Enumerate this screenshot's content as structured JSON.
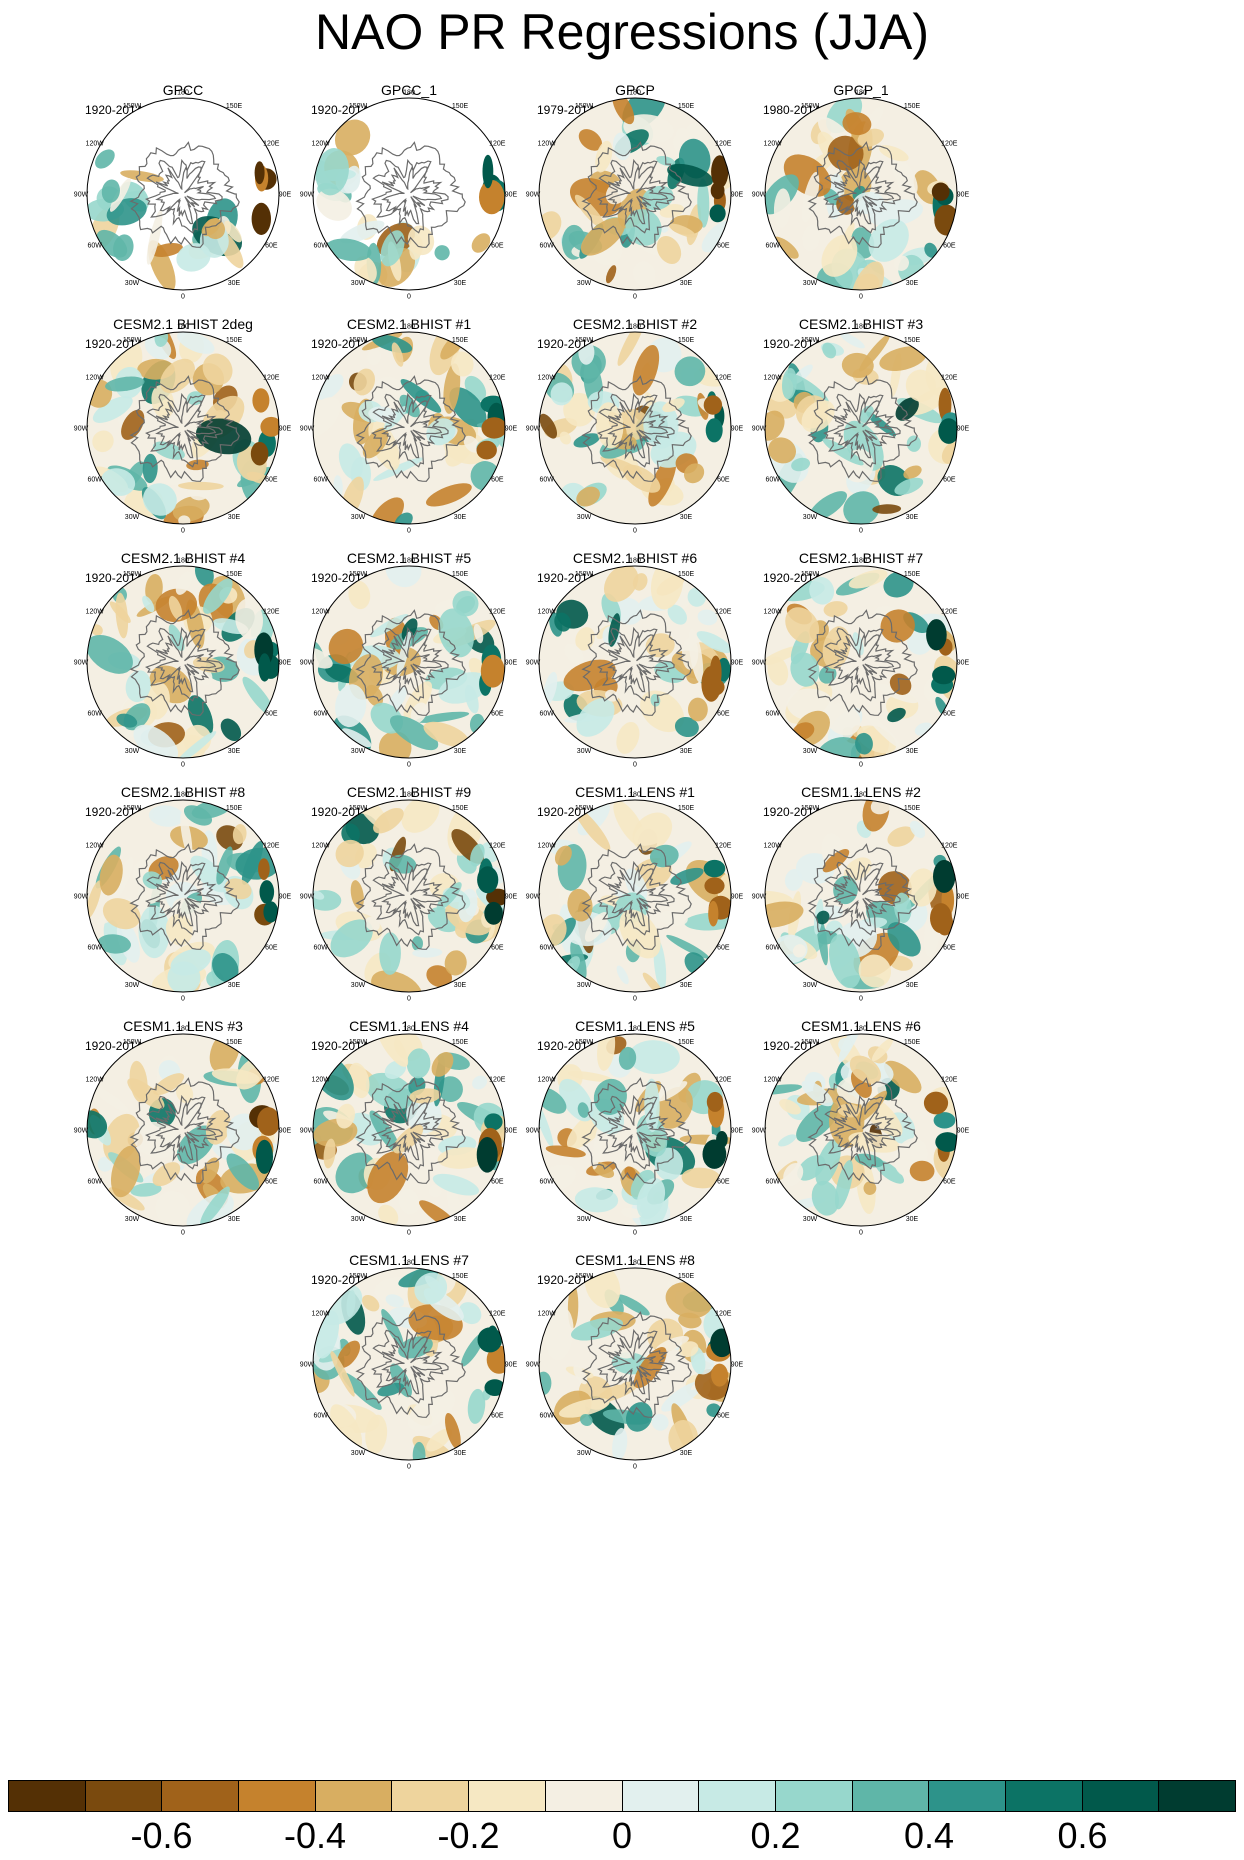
{
  "title": "NAO PR Regressions (JJA)",
  "panels": [
    {
      "name": "GPCC",
      "period": "1920-2014",
      "mask": true,
      "seed": 3
    },
    {
      "name": "GPCC_1",
      "period": "1920-2014",
      "mask": true,
      "seed": 5
    },
    {
      "name": "GPCP",
      "period": "1979-2014",
      "mask": false,
      "seed": 7
    },
    {
      "name": "GPCP_1",
      "period": "1980-2014",
      "mask": false,
      "seed": 9
    },
    {
      "name": "CESM2.1 BHIST 2deg",
      "period": "1920-2014",
      "mask": false,
      "seed": 11
    },
    {
      "name": "CESM2.1 BHIST #1",
      "period": "1920-2014",
      "mask": false,
      "seed": 13
    },
    {
      "name": "CESM2.1 BHIST #2",
      "period": "1920-2014",
      "mask": false,
      "seed": 17
    },
    {
      "name": "CESM2.1 BHIST #3",
      "period": "1920-2014",
      "mask": false,
      "seed": 19
    },
    {
      "name": "CESM2.1 BHIST #4",
      "period": "1920-2014",
      "mask": false,
      "seed": 23
    },
    {
      "name": "CESM2.1 BHIST #5",
      "period": "1920-2014",
      "mask": false,
      "seed": 29
    },
    {
      "name": "CESM2.1 BHIST #6",
      "period": "1920-2014",
      "mask": false,
      "seed": 31
    },
    {
      "name": "CESM2.1 BHIST #7",
      "period": "1920-2014",
      "mask": false,
      "seed": 37
    },
    {
      "name": "CESM2.1 BHIST #8",
      "period": "1920-2014",
      "mask": false,
      "seed": 41
    },
    {
      "name": "CESM2.1 BHIST #9",
      "period": "1920-2014",
      "mask": false,
      "seed": 43
    },
    {
      "name": "CESM1.1 LENS #1",
      "period": "1920-2014",
      "mask": false,
      "seed": 47
    },
    {
      "name": "CESM1.1 LENS #2",
      "period": "1920-2014",
      "mask": false,
      "seed": 53
    },
    {
      "name": "CESM1.1 LENS #3",
      "period": "1920-2014",
      "mask": false,
      "seed": 59
    },
    {
      "name": "CESM1.1 LENS #4",
      "period": "1920-2014",
      "mask": false,
      "seed": 61
    },
    {
      "name": "CESM1.1 LENS #5",
      "period": "1920-2014",
      "mask": false,
      "seed": 67
    },
    {
      "name": "CESM1.1 LENS #6",
      "period": "1920-2014",
      "mask": false,
      "seed": 71
    },
    {
      "name": "CESM1.1 LENS #7",
      "period": "1920-2014",
      "mask": false,
      "seed": 73
    },
    {
      "name": "CESM1.1 LENS #8",
      "period": "1920-2014",
      "mask": false,
      "seed": 79
    }
  ],
  "longitude_labels": [
    "180",
    "150E",
    "120E",
    "90E",
    "60E",
    "30E",
    "0",
    "30W",
    "60W",
    "90W",
    "120W",
    "150W"
  ],
  "colorbar": {
    "colors": [
      "#543005",
      "#7a4a0e",
      "#a0621a",
      "#c5822d",
      "#d8ae61",
      "#eed49d",
      "#f6e8c3",
      "#f4efe3",
      "#e2f0ee",
      "#c7eae5",
      "#97d7cc",
      "#5fb6a8",
      "#2d938a",
      "#0c7365",
      "#01594b",
      "#003c30"
    ],
    "labels": [
      "-0.6",
      "-0.4",
      "-0.2",
      "0",
      "0.2",
      "0.4",
      "0.6"
    ]
  },
  "legend_values": [
    -0.6,
    -0.4,
    -0.2,
    0,
    0.2,
    0.4,
    0.6
  ]
}
